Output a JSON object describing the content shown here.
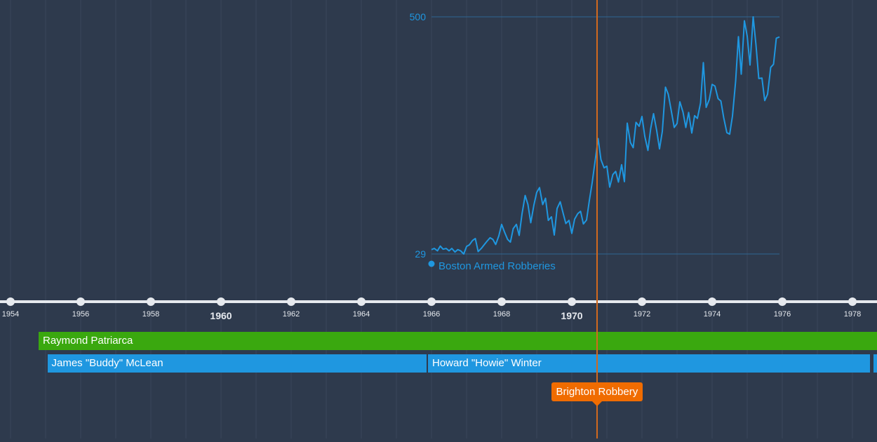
{
  "timeline": {
    "ticks": [
      {
        "year": 1954,
        "label": "1954",
        "major": false
      },
      {
        "year": 1956,
        "label": "1956",
        "major": false
      },
      {
        "year": 1958,
        "label": "1958",
        "major": false
      },
      {
        "year": 1960,
        "label": "1960",
        "major": true
      },
      {
        "year": 1962,
        "label": "1962",
        "major": false
      },
      {
        "year": 1964,
        "label": "1964",
        "major": false
      },
      {
        "year": 1966,
        "label": "1966",
        "major": false
      },
      {
        "year": 1968,
        "label": "1968",
        "major": false
      },
      {
        "year": 1970,
        "label": "1970",
        "major": true
      },
      {
        "year": 1972,
        "label": "1972",
        "major": false
      },
      {
        "year": 1974,
        "label": "1974",
        "major": false
      },
      {
        "year": 1976,
        "label": "1976",
        "major": false
      },
      {
        "year": 1978,
        "label": "1978",
        "major": false
      }
    ]
  },
  "bars": [
    {
      "label": "Raymond Patriarca",
      "start": 1954.8,
      "end": 1980,
      "row": 0,
      "color": "#3aa80f"
    },
    {
      "label": "James \"Buddy\" McLean",
      "start": 1955.05,
      "end": 1965.85,
      "row": 1,
      "color": "#1f97e0"
    },
    {
      "label": "Howard \"Howie\" Winter",
      "start": 1965.9,
      "end": 1978.5,
      "row": 1,
      "color": "#1f97e0"
    },
    {
      "label": "",
      "start": 1978.6,
      "end": 1980,
      "row": 1,
      "color": "#1f97e0"
    }
  ],
  "event": {
    "label": "Brighton Robbery",
    "year": 1970.72,
    "color": "#f06c00"
  },
  "chart_data": {
    "type": "line",
    "series": [
      {
        "name": "Boston Armed Robberies",
        "color": "#1f97e0",
        "points": [
          [
            1966.0,
            40
          ],
          [
            1966.08,
            43
          ],
          [
            1966.17,
            37
          ],
          [
            1966.25,
            49
          ],
          [
            1966.33,
            41
          ],
          [
            1966.42,
            43
          ],
          [
            1966.5,
            37
          ],
          [
            1966.58,
            43
          ],
          [
            1966.67,
            34
          ],
          [
            1966.75,
            40
          ],
          [
            1966.83,
            37
          ],
          [
            1966.92,
            29
          ],
          [
            1967.0,
            48
          ],
          [
            1967.08,
            52
          ],
          [
            1967.17,
            63
          ],
          [
            1967.25,
            68
          ],
          [
            1967.33,
            35
          ],
          [
            1967.42,
            43
          ],
          [
            1967.5,
            52
          ],
          [
            1967.58,
            61
          ],
          [
            1967.67,
            70
          ],
          [
            1967.75,
            66
          ],
          [
            1967.83,
            53
          ],
          [
            1967.92,
            75
          ],
          [
            1968.0,
            104
          ],
          [
            1968.08,
            85
          ],
          [
            1968.17,
            66
          ],
          [
            1968.25,
            59
          ],
          [
            1968.33,
            93
          ],
          [
            1968.42,
            104
          ],
          [
            1968.5,
            76
          ],
          [
            1968.58,
            130
          ],
          [
            1968.67,
            177
          ],
          [
            1968.75,
            154
          ],
          [
            1968.83,
            108
          ],
          [
            1968.92,
            153
          ],
          [
            1969.0,
            185
          ],
          [
            1969.08,
            197
          ],
          [
            1969.17,
            154
          ],
          [
            1969.25,
            170
          ],
          [
            1969.33,
            114
          ],
          [
            1969.42,
            123
          ],
          [
            1969.5,
            77
          ],
          [
            1969.58,
            144
          ],
          [
            1969.67,
            161
          ],
          [
            1969.75,
            133
          ],
          [
            1969.83,
            106
          ],
          [
            1969.92,
            114
          ],
          [
            1970.0,
            81
          ],
          [
            1970.08,
            117
          ],
          [
            1970.17,
            131
          ],
          [
            1970.25,
            137
          ],
          [
            1970.33,
            105
          ],
          [
            1970.42,
            115
          ],
          [
            1970.5,
            164
          ],
          [
            1970.58,
            209
          ],
          [
            1970.67,
            268
          ],
          [
            1970.75,
            321
          ],
          [
            1970.83,
            268
          ],
          [
            1970.92,
            247
          ],
          [
            1971.0,
            251
          ],
          [
            1971.08,
            198
          ],
          [
            1971.17,
            230
          ],
          [
            1971.25,
            238
          ],
          [
            1971.33,
            211
          ],
          [
            1971.42,
            255
          ],
          [
            1971.5,
            212
          ],
          [
            1971.58,
            360
          ],
          [
            1971.67,
            311
          ],
          [
            1971.75,
            298
          ],
          [
            1971.83,
            362
          ],
          [
            1971.92,
            352
          ],
          [
            1972.0,
            377
          ],
          [
            1972.08,
            327
          ],
          [
            1972.17,
            291
          ],
          [
            1972.25,
            347
          ],
          [
            1972.33,
            384
          ],
          [
            1972.42,
            341
          ],
          [
            1972.5,
            295
          ],
          [
            1972.58,
            339
          ],
          [
            1972.67,
            451
          ],
          [
            1972.75,
            433
          ],
          [
            1972.83,
            394
          ],
          [
            1972.92,
            349
          ],
          [
            1973.0,
            359
          ],
          [
            1973.08,
            414
          ],
          [
            1973.17,
            388
          ],
          [
            1973.25,
            349
          ],
          [
            1973.33,
            387
          ],
          [
            1973.42,
            335
          ],
          [
            1973.5,
            379
          ],
          [
            1973.58,
            372
          ],
          [
            1973.67,
            411
          ],
          [
            1973.75,
            513
          ],
          [
            1973.83,
            400
          ],
          [
            1973.92,
            420
          ],
          [
            1974.0,
            458
          ],
          [
            1974.08,
            454
          ],
          [
            1974.17,
            422
          ],
          [
            1974.25,
            416
          ],
          [
            1974.33,
            374
          ],
          [
            1974.42,
            336
          ],
          [
            1974.5,
            332
          ],
          [
            1974.58,
            378
          ],
          [
            1974.67,
            466
          ],
          [
            1974.75,
            579
          ],
          [
            1974.83,
            484
          ],
          [
            1974.92,
            619
          ],
          [
            1975.0,
            580
          ],
          [
            1975.08,
            507
          ],
          [
            1975.17,
            629
          ],
          [
            1975.25,
            558
          ],
          [
            1975.33,
            473
          ],
          [
            1975.42,
            474
          ],
          [
            1975.5,
            417
          ],
          [
            1975.58,
            433
          ],
          [
            1975.67,
            501
          ],
          [
            1975.75,
            509
          ],
          [
            1975.83,
            575
          ],
          [
            1975.92,
            578
          ]
        ]
      }
    ],
    "y_labels": [
      "500",
      "29"
    ],
    "ylim": [
      29,
      629
    ]
  }
}
